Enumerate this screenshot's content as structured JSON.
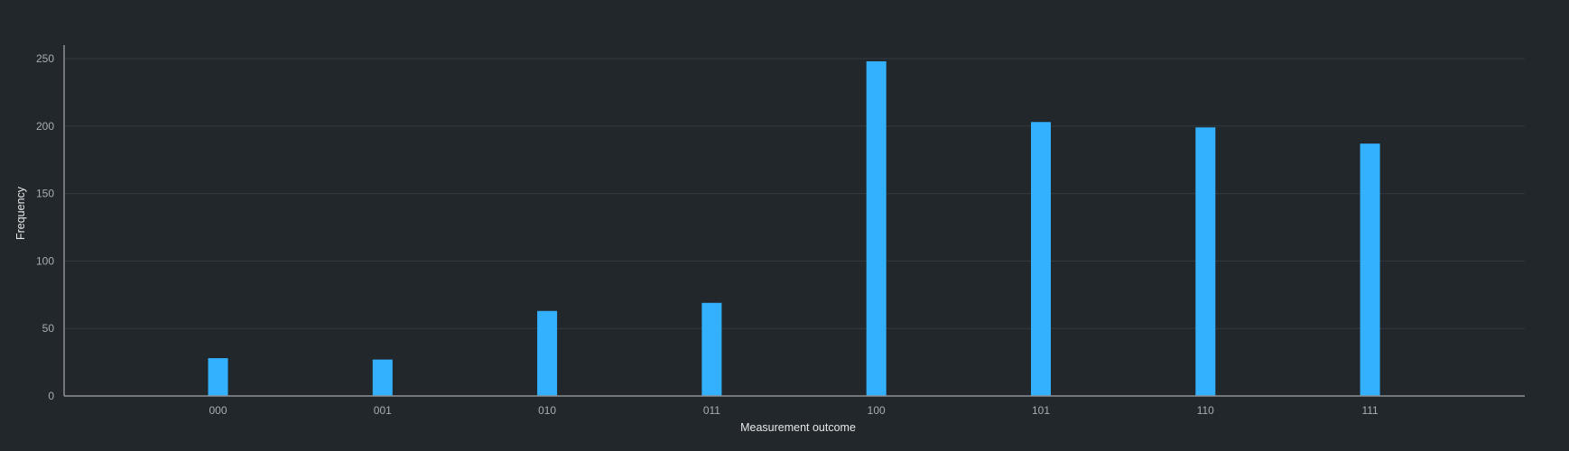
{
  "chart_data": {
    "type": "bar",
    "title": "",
    "xlabel": "Measurement outcome",
    "ylabel": "Frequency",
    "categories": [
      "000",
      "001",
      "010",
      "011",
      "100",
      "101",
      "110",
      "111"
    ],
    "values": [
      28,
      27,
      63,
      69,
      248,
      203,
      199,
      187
    ],
    "ylim": [
      0,
      260
    ],
    "yticks": [
      0,
      50,
      100,
      150,
      200,
      250
    ],
    "grid": true,
    "legend": "none",
    "colors": {
      "bar": "#33b1ff",
      "background": "#22272b",
      "grid": "#333a40",
      "axis": "#8d9196",
      "tick_text": "#a8adb2",
      "title_text": "#e6e8ea"
    }
  }
}
